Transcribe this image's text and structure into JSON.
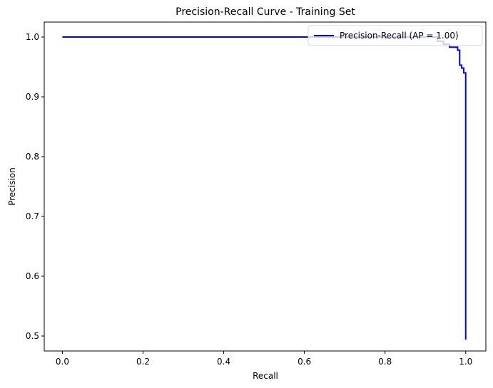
{
  "chart_data": {
    "type": "line",
    "title": "Precision-Recall Curve - Training Set",
    "xlabel": "Recall",
    "ylabel": "Precision",
    "xlim": [
      -0.045,
      1.05
    ],
    "ylim": [
      0.475,
      1.025
    ],
    "xticks": [
      0.0,
      0.2,
      0.4,
      0.6,
      0.8,
      1.0
    ],
    "xtick_labels": [
      "0.0",
      "0.2",
      "0.4",
      "0.6",
      "0.8",
      "1.0"
    ],
    "yticks": [
      0.5,
      0.6,
      0.7,
      0.8,
      0.9,
      1.0
    ],
    "ytick_labels": [
      "0.5",
      "0.6",
      "0.7",
      "0.8",
      "0.9",
      "1.0"
    ],
    "grid": false,
    "legend_position": "top-right",
    "series": [
      {
        "name": "Precision-Recall (AP = 1.00)",
        "color": "#0000ff",
        "step": true,
        "x": [
          0.0,
          0.86,
          0.93,
          0.945,
          0.96,
          0.98,
          0.985,
          0.99,
          0.995,
          1.0,
          1.0
        ],
        "y": [
          1.0,
          1.0,
          0.993,
          0.988,
          0.983,
          0.978,
          0.953,
          0.948,
          0.94,
          0.937,
          0.494
        ]
      }
    ]
  }
}
